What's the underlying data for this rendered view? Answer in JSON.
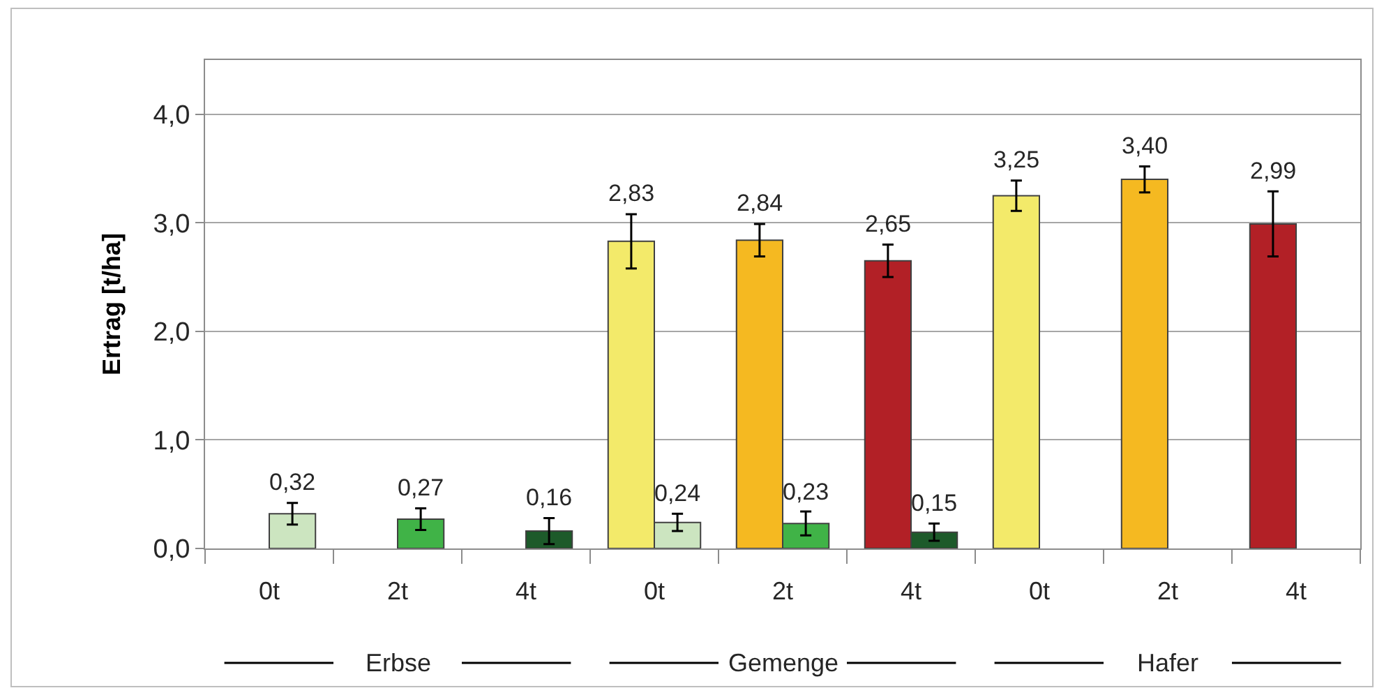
{
  "chart_data": {
    "type": "bar",
    "ylabel": "Ertrag [t/ha]",
    "categories": [
      "0t",
      "2t",
      "4t",
      "0t",
      "2t",
      "4t",
      "0t",
      "2t",
      "4t"
    ],
    "series": [
      {
        "colors": [
          "#f3ea6a",
          "#f5b921",
          "#b22026",
          "#f3ea6a",
          "#f5b921",
          "#b22026",
          "#f3ea6a",
          "#f5b921",
          "#b22026"
        ],
        "values": [
          null,
          null,
          null,
          2.83,
          2.84,
          2.65,
          3.25,
          3.4,
          2.99
        ],
        "errors": [
          null,
          null,
          null,
          0.25,
          0.15,
          0.15,
          0.14,
          0.12,
          0.3
        ],
        "value_labels": [
          null,
          null,
          null,
          "2,83",
          "2,84",
          "2,65",
          "3,25",
          "3,40",
          "2,99"
        ]
      },
      {
        "colors": [
          "#cce5c0",
          "#40b347",
          "#1d5a2a",
          "#cce5c0",
          "#40b347",
          "#1d5a2a",
          "#cce5c0",
          "#40b347",
          "#1d5a2a"
        ],
        "values": [
          0.32,
          0.27,
          0.16,
          0.24,
          0.23,
          0.15,
          null,
          null,
          null
        ],
        "errors": [
          0.1,
          0.1,
          0.12,
          0.08,
          0.11,
          0.08,
          null,
          null,
          null
        ],
        "value_labels": [
          "0,32",
          "0,27",
          "0,16",
          "0,24",
          "0,23",
          "0,15",
          null,
          null,
          null
        ]
      }
    ],
    "annotations": [
      "Erbse",
      "Gemenge",
      "Hafer"
    ],
    "ylim": [
      0,
      4.5
    ],
    "yticks": [
      {
        "value": 0,
        "label": "0,0"
      },
      {
        "value": 1,
        "label": "1,0"
      },
      {
        "value": 2,
        "label": "2,0"
      },
      {
        "value": 3,
        "label": "3,0"
      },
      {
        "value": 4,
        "label": "4,0"
      }
    ],
    "grid": "y"
  }
}
